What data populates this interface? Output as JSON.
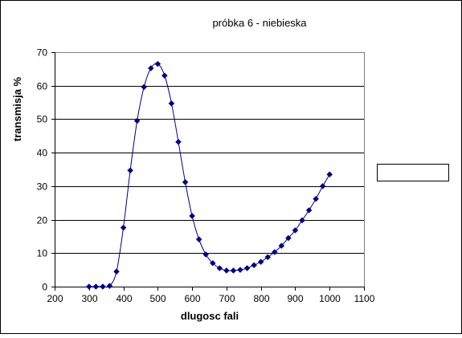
{
  "chart_data": {
    "type": "scatter",
    "title": "próbka 6 - niebieska",
    "xlabel": "dlugosc fali",
    "ylabel": "transmisja %",
    "xlim": [
      200,
      1100
    ],
    "ylim": [
      0,
      70
    ],
    "x_ticks": [
      200,
      300,
      400,
      500,
      600,
      700,
      800,
      900,
      1000,
      1100
    ],
    "y_ticks": [
      0,
      10,
      20,
      30,
      40,
      50,
      60,
      70
    ],
    "grid": "horizontal",
    "legend": "right",
    "marker": "diamond",
    "line": "smooth",
    "series": [
      {
        "color": "#000080",
        "x": [
          300,
          320,
          340,
          360,
          380,
          400,
          420,
          440,
          460,
          480,
          500,
          520,
          540,
          560,
          580,
          600,
          620,
          640,
          660,
          680,
          700,
          720,
          740,
          760,
          780,
          800,
          820,
          840,
          860,
          880,
          900,
          920,
          940,
          960,
          980,
          1000
        ],
        "y": [
          0,
          0,
          0,
          0.2,
          4.5,
          17.6,
          34.7,
          49.5,
          59.6,
          65.2,
          66.5,
          63.0,
          54.7,
          43.2,
          31.2,
          21.1,
          14.1,
          9.6,
          7.0,
          5.5,
          4.8,
          4.8,
          5.0,
          5.5,
          6.4,
          7.4,
          8.8,
          10.3,
          12.2,
          14.5,
          16.8,
          19.8,
          22.8,
          26.2,
          30.0,
          33.5
        ]
      }
    ]
  }
}
